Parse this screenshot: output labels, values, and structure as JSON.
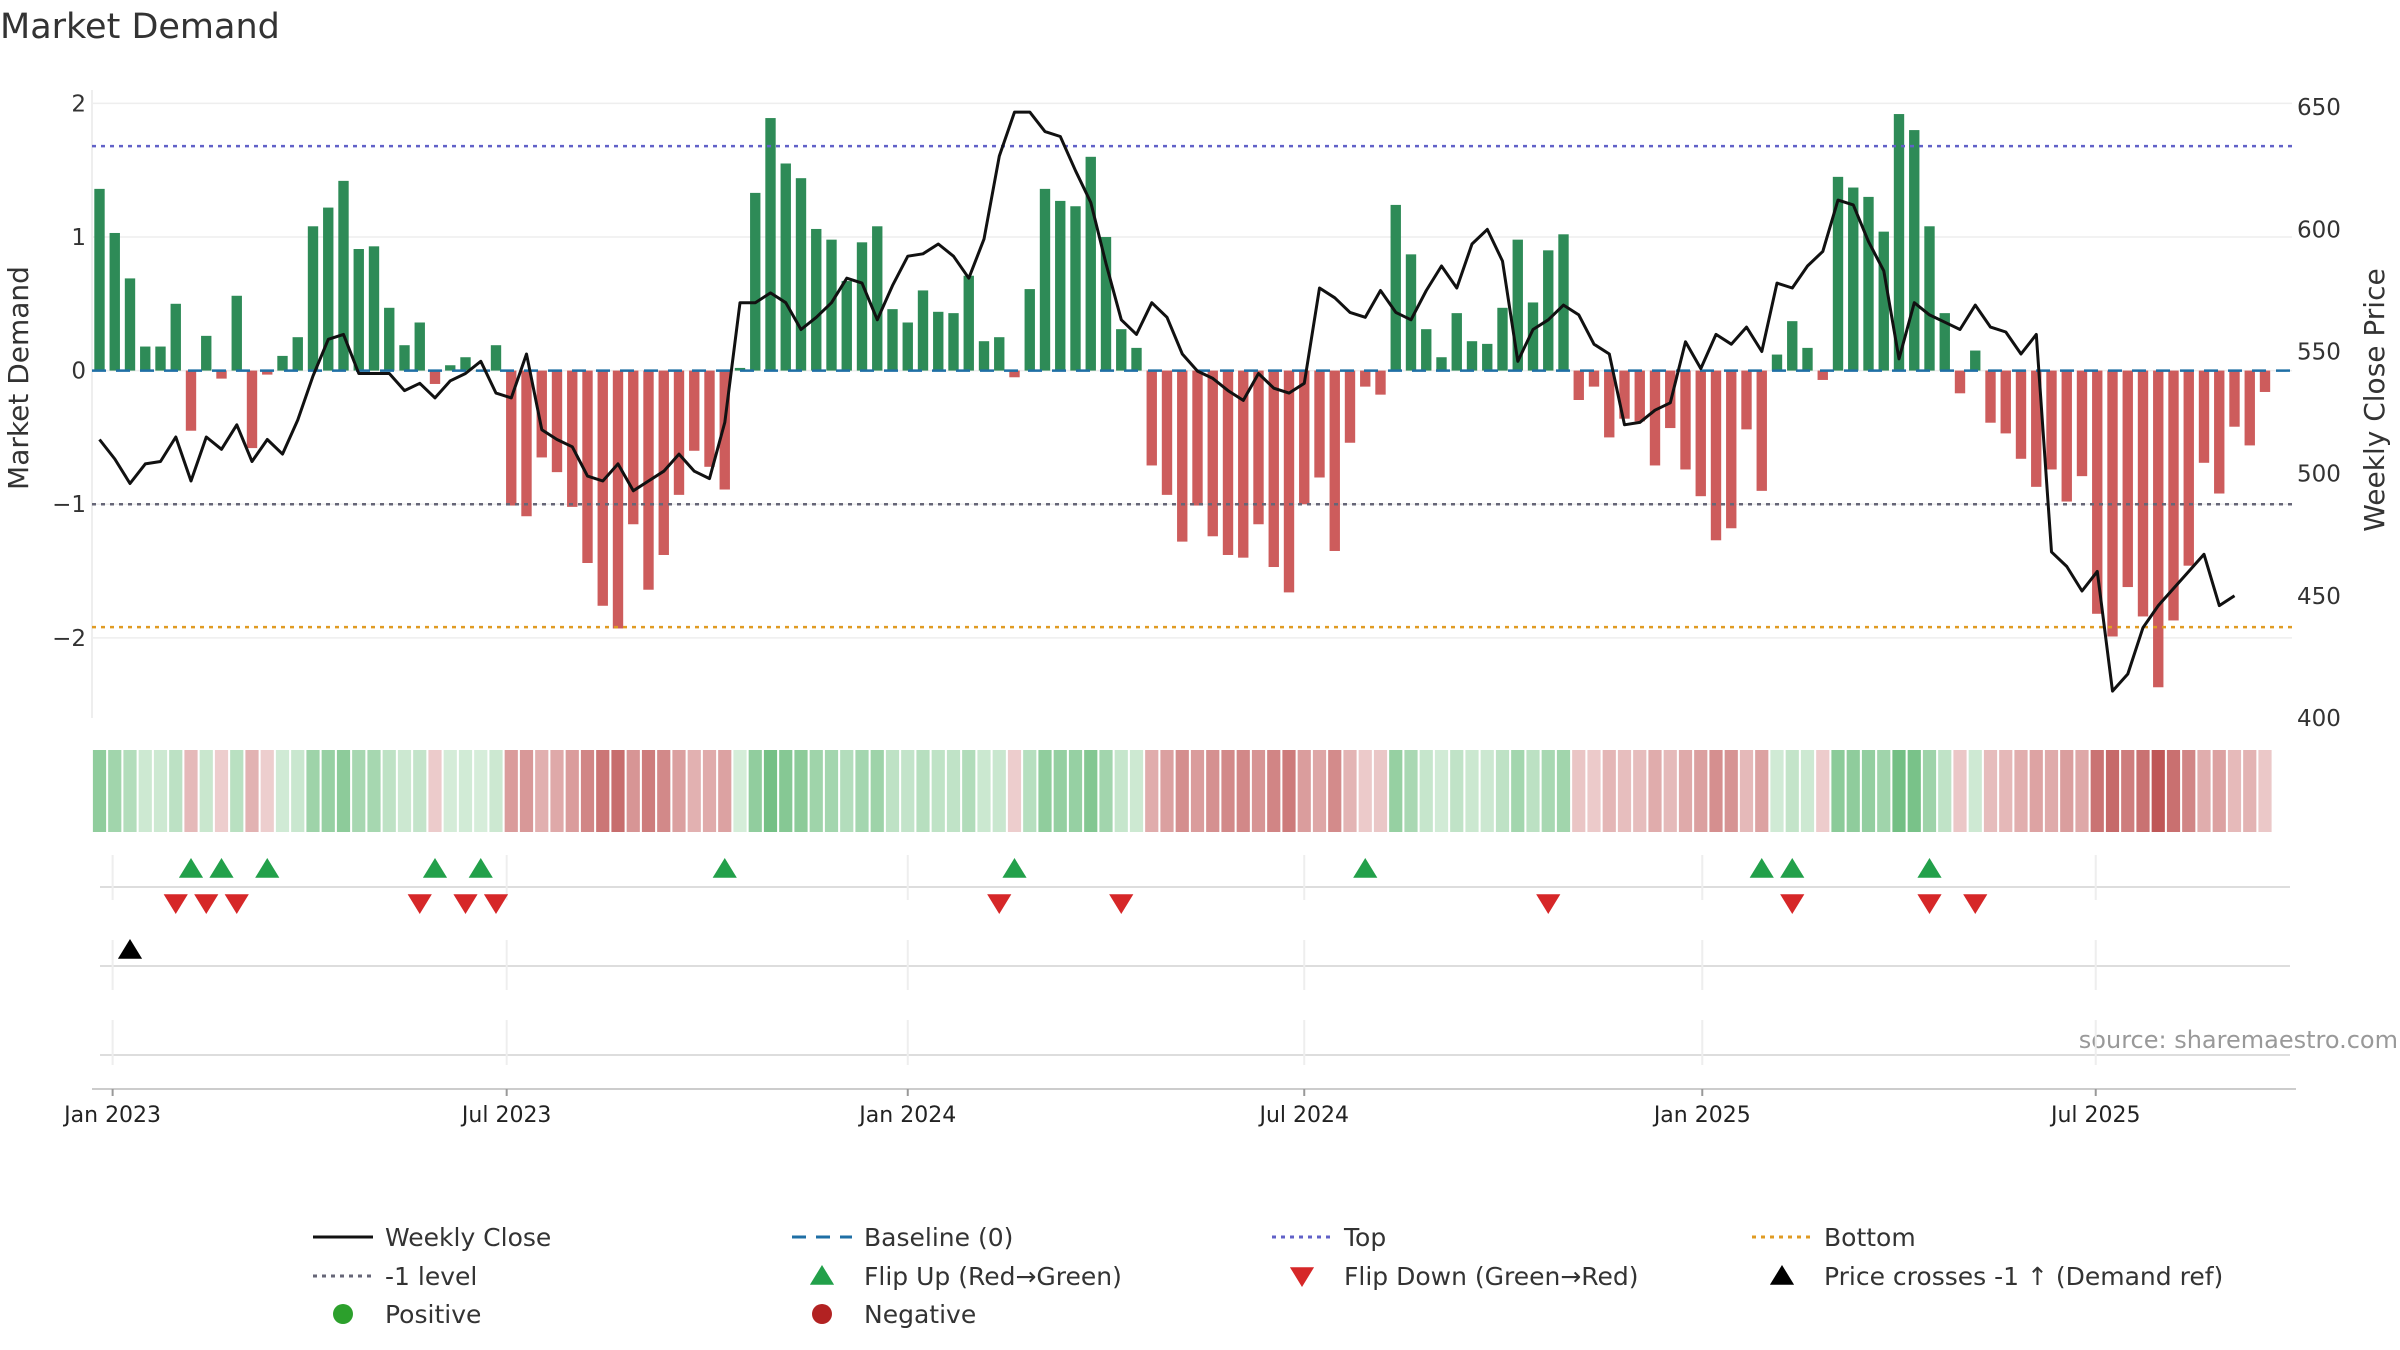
{
  "chart_data": {
    "type": "bar+line",
    "title": "Market Demand",
    "ylabel": "Market Demand",
    "y2label": "Weekly Close Price",
    "ylim": [
      -2.6,
      2.1
    ],
    "y2lim": [
      400,
      655
    ],
    "yticks": [
      2,
      1,
      0,
      -1,
      -2
    ],
    "ytick_labels": [
      "2",
      "1",
      "0",
      "−1",
      "−2"
    ],
    "y2ticks": [
      650,
      600,
      550,
      500,
      450,
      400
    ],
    "y2tick_labels": [
      "650",
      "600",
      "550",
      "500",
      "450",
      "400"
    ],
    "x_start": "2022-12-26",
    "x_range_weeks": [
      -1,
      140
    ],
    "xticks": [
      {
        "label": "Jan 2023",
        "week": 0.86
      },
      {
        "label": "Jul 2023",
        "week": 26.7
      },
      {
        "label": "Jan 2024",
        "week": 53
      },
      {
        "label": "Jul 2024",
        "week": 79
      },
      {
        "label": "Jan 2025",
        "week": 105.1
      },
      {
        "label": "Jul 2025",
        "week": 130.9
      }
    ],
    "reference_lines": {
      "top": 1.68,
      "minus_one": -1.0,
      "bottom": -1.92,
      "baseline": 0.0
    },
    "demand": [
      1.36,
      1.03,
      0.69,
      0.18,
      0.18,
      0.5,
      -0.45,
      0.26,
      -0.06,
      0.56,
      -0.58,
      -0.03,
      0.11,
      0.25,
      1.08,
      1.22,
      1.42,
      0.91,
      0.93,
      0.47,
      0.19,
      0.36,
      -0.1,
      0.04,
      0.1,
      0.0,
      0.19,
      -1.01,
      -1.09,
      -0.65,
      -0.76,
      -1.02,
      -1.44,
      -1.76,
      -1.93,
      -1.15,
      -1.64,
      -1.38,
      -0.93,
      -0.6,
      -0.72,
      -0.89,
      0.02,
      1.33,
      1.89,
      1.55,
      1.44,
      1.06,
      0.98,
      0.67,
      0.96,
      1.08,
      0.46,
      0.36,
      0.6,
      0.44,
      0.43,
      0.71,
      0.22,
      0.25,
      -0.05,
      0.61,
      1.36,
      1.27,
      1.23,
      1.6,
      1.0,
      0.31,
      0.17,
      -0.71,
      -0.93,
      -1.28,
      -1.01,
      -1.24,
      -1.38,
      -1.4,
      -1.15,
      -1.47,
      -1.66,
      -1.0,
      -0.8,
      -1.35,
      -0.54,
      -0.12,
      -0.18,
      1.24,
      0.87,
      0.31,
      0.1,
      0.43,
      0.22,
      0.2,
      0.47,
      0.98,
      0.51,
      0.9,
      1.02,
      -0.22,
      -0.12,
      -0.5,
      -0.36,
      -0.38,
      -0.71,
      -0.43,
      -0.74,
      -0.94,
      -1.27,
      -1.18,
      -0.44,
      -0.9,
      0.12,
      0.37,
      0.17,
      -0.07,
      1.45,
      1.37,
      1.3,
      1.04,
      1.92,
      1.8,
      1.08,
      0.43,
      -0.17,
      0.15,
      -0.39,
      -0.47,
      -0.66,
      -0.87,
      -0.74,
      -0.98,
      -0.79,
      -1.82,
      -1.99,
      -1.62,
      -1.84,
      -2.37,
      -1.87,
      -1.46,
      -0.69,
      -0.92,
      -0.42,
      -0.56,
      -0.16
    ],
    "weekly_close": [
      514,
      506,
      496,
      504,
      505,
      515,
      497,
      515,
      510,
      520,
      505,
      514,
      508,
      522,
      540,
      555,
      557,
      541,
      541,
      541,
      534,
      537,
      531,
      538,
      541,
      546,
      533,
      531,
      549,
      518,
      514,
      511,
      499,
      497,
      504,
      493,
      497,
      501,
      508,
      501,
      498,
      521,
      570,
      570,
      574,
      570,
      559,
      564,
      570,
      580,
      578,
      563,
      577,
      589,
      590,
      594,
      589,
      580,
      596,
      630,
      648,
      648,
      640,
      638,
      624,
      611,
      586,
      563,
      557,
      570,
      564,
      549,
      542,
      539,
      534,
      530,
      541,
      535,
      533,
      537,
      576,
      572,
      566,
      564,
      575,
      566,
      563,
      575,
      585,
      576,
      594,
      600,
      587,
      546,
      559,
      563,
      569,
      565,
      553,
      549,
      520,
      521,
      526,
      529,
      554,
      543,
      557,
      553,
      560,
      550,
      578,
      576,
      585,
      591,
      612,
      610,
      595,
      583,
      547,
      570,
      565,
      562,
      559,
      569,
      560,
      558,
      549,
      557,
      468,
      462,
      452,
      460,
      411,
      418,
      437,
      446,
      453,
      460,
      467,
      446,
      450
    ],
    "flip_up_weeks": [
      6,
      8,
      11,
      22,
      25,
      41,
      60,
      83,
      109,
      111,
      120
    ],
    "flip_down_weeks": [
      5,
      7,
      9,
      21,
      24,
      26,
      59,
      67,
      95,
      111,
      120,
      123
    ],
    "price_cross_weeks": [
      2
    ],
    "source_text": "source: sharemaestro.com",
    "legend": [
      {
        "label": "Weekly Close",
        "kind": "solid-line",
        "color": "#111111"
      },
      {
        "label": "Baseline (0)",
        "kind": "dash-line",
        "color": "#1f6fa5"
      },
      {
        "label": "Top",
        "kind": "dot-line",
        "color": "#6161c8"
      },
      {
        "label": "Bottom",
        "kind": "dot-line",
        "color": "#e09b22"
      },
      {
        "label": "-1 level",
        "kind": "dot-line",
        "color": "#666677"
      },
      {
        "label": "Flip Up (Red→Green)",
        "kind": "tri-up",
        "color": "#22a04a"
      },
      {
        "label": "Flip Down (Green→Red)",
        "kind": "tri-down",
        "color": "#d62728"
      },
      {
        "label": "Price crosses -1 ↑ (Demand ref)",
        "kind": "tri-up",
        "color": "#000000"
      },
      {
        "label": "Positive",
        "kind": "dot",
        "color": "#2ca02c"
      },
      {
        "label": "Negative",
        "kind": "dot",
        "color": "#b22222"
      }
    ],
    "colors": {
      "positive_bar": "#2e8b57",
      "negative_bar": "#cd5c5c",
      "price_line": "#111111",
      "grid": "#eeeeee"
    }
  }
}
